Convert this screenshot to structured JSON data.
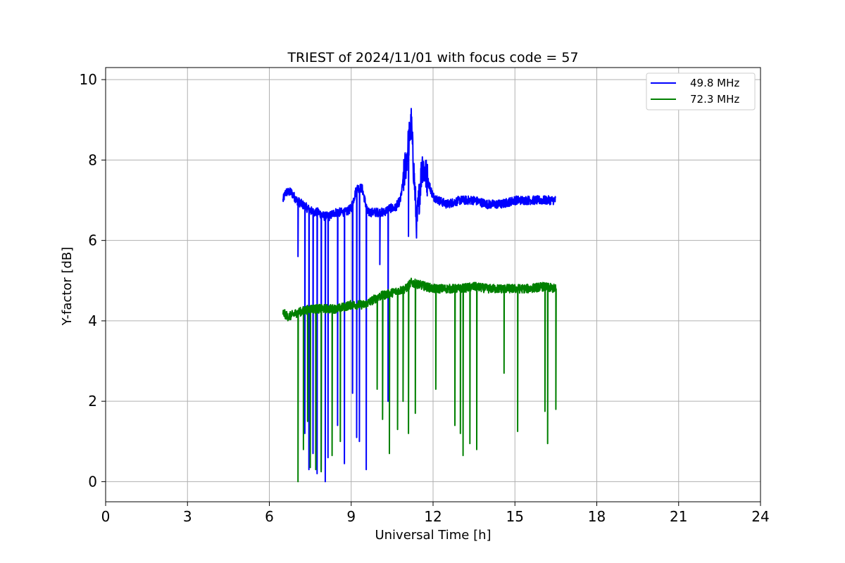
{
  "chart_data": {
    "type": "line",
    "title": "TRIEST of 2024/11/01 with focus code = 57",
    "xlabel": "Universal Time [h]",
    "ylabel": "Y-factor [dB]",
    "xlim": [
      0,
      24
    ],
    "ylim": [
      -0.5,
      10.3
    ],
    "xticks": [
      0,
      3,
      6,
      9,
      12,
      15,
      18,
      21,
      24
    ],
    "yticks": [
      0,
      2,
      4,
      6,
      8,
      10
    ],
    "grid": true,
    "legend_position": "top-right",
    "series": [
      {
        "name": "49.8 MHz",
        "color": "#0000ff",
        "x": [
          6.5,
          6.6,
          6.8,
          7.0,
          7.2,
          7.4,
          7.6,
          7.8,
          8.0,
          8.2,
          8.4,
          8.6,
          8.8,
          9.0,
          9.2,
          9.4,
          9.6,
          9.8,
          10.0,
          10.2,
          10.4,
          10.6,
          10.8,
          11.0,
          11.2,
          11.4,
          11.6,
          11.8,
          12.0,
          12.2,
          12.5,
          13.0,
          13.5,
          14.0,
          14.5,
          15.0,
          15.5,
          16.0,
          16.5
        ],
        "y": [
          7.0,
          7.2,
          7.2,
          7.0,
          6.9,
          6.8,
          6.7,
          6.7,
          6.6,
          6.6,
          6.7,
          6.7,
          6.7,
          6.8,
          7.3,
          7.3,
          6.7,
          6.7,
          6.7,
          6.7,
          6.8,
          6.8,
          7.0,
          7.9,
          8.9,
          6.4,
          7.9,
          7.5,
          7.1,
          7.0,
          6.9,
          7.0,
          7.0,
          6.9,
          6.9,
          7.0,
          7.0,
          7.0,
          7.0
        ],
        "dips": [
          {
            "x": 7.05,
            "y": 5.6
          },
          {
            "x": 7.3,
            "y": 1.2
          },
          {
            "x": 7.45,
            "y": 0.3
          },
          {
            "x": 7.6,
            "y": 0.7
          },
          {
            "x": 7.75,
            "y": 0.2
          },
          {
            "x": 7.9,
            "y": 0.3
          },
          {
            "x": 8.05,
            "y": 0.0
          },
          {
            "x": 8.15,
            "y": 0.6
          },
          {
            "x": 8.5,
            "y": 1.4
          },
          {
            "x": 8.75,
            "y": 0.45
          },
          {
            "x": 9.05,
            "y": 2.2
          },
          {
            "x": 9.2,
            "y": 1.1
          },
          {
            "x": 9.3,
            "y": 1.0
          },
          {
            "x": 9.55,
            "y": 0.3
          },
          {
            "x": 10.05,
            "y": 5.4
          },
          {
            "x": 10.35,
            "y": 2.0
          },
          {
            "x": 11.1,
            "y": 6.1
          }
        ]
      },
      {
        "name": "72.3 MHz",
        "color": "#008000",
        "x": [
          6.5,
          6.7,
          7.0,
          7.5,
          8.0,
          8.5,
          9.0,
          9.5,
          10.0,
          10.5,
          11.0,
          11.2,
          11.5,
          12.0,
          12.5,
          13.0,
          13.5,
          14.0,
          14.5,
          15.0,
          15.5,
          16.0,
          16.5
        ],
        "y": [
          4.2,
          4.1,
          4.2,
          4.3,
          4.3,
          4.3,
          4.4,
          4.4,
          4.6,
          4.7,
          4.8,
          4.95,
          4.9,
          4.8,
          4.8,
          4.8,
          4.85,
          4.8,
          4.8,
          4.8,
          4.8,
          4.85,
          4.8
        ],
        "dips": [
          {
            "x": 7.05,
            "y": 0.0
          },
          {
            "x": 7.25,
            "y": 0.8
          },
          {
            "x": 7.4,
            "y": 1.5
          },
          {
            "x": 7.5,
            "y": 0.35
          },
          {
            "x": 7.7,
            "y": 0.3
          },
          {
            "x": 7.9,
            "y": 0.25
          },
          {
            "x": 8.3,
            "y": 0.65
          },
          {
            "x": 8.6,
            "y": 1.0
          },
          {
            "x": 9.95,
            "y": 2.3
          },
          {
            "x": 10.15,
            "y": 1.55
          },
          {
            "x": 10.4,
            "y": 0.7
          },
          {
            "x": 10.7,
            "y": 1.3
          },
          {
            "x": 10.9,
            "y": 2.0
          },
          {
            "x": 11.1,
            "y": 1.2
          },
          {
            "x": 11.35,
            "y": 1.7
          },
          {
            "x": 12.1,
            "y": 2.3
          },
          {
            "x": 12.8,
            "y": 1.4
          },
          {
            "x": 13.0,
            "y": 1.2
          },
          {
            "x": 13.1,
            "y": 0.65
          },
          {
            "x": 13.35,
            "y": 0.95
          },
          {
            "x": 13.6,
            "y": 0.8
          },
          {
            "x": 14.6,
            "y": 2.7
          },
          {
            "x": 15.1,
            "y": 1.25
          },
          {
            "x": 16.1,
            "y": 1.75
          },
          {
            "x": 16.2,
            "y": 0.95
          },
          {
            "x": 16.5,
            "y": 1.8
          }
        ]
      }
    ]
  }
}
